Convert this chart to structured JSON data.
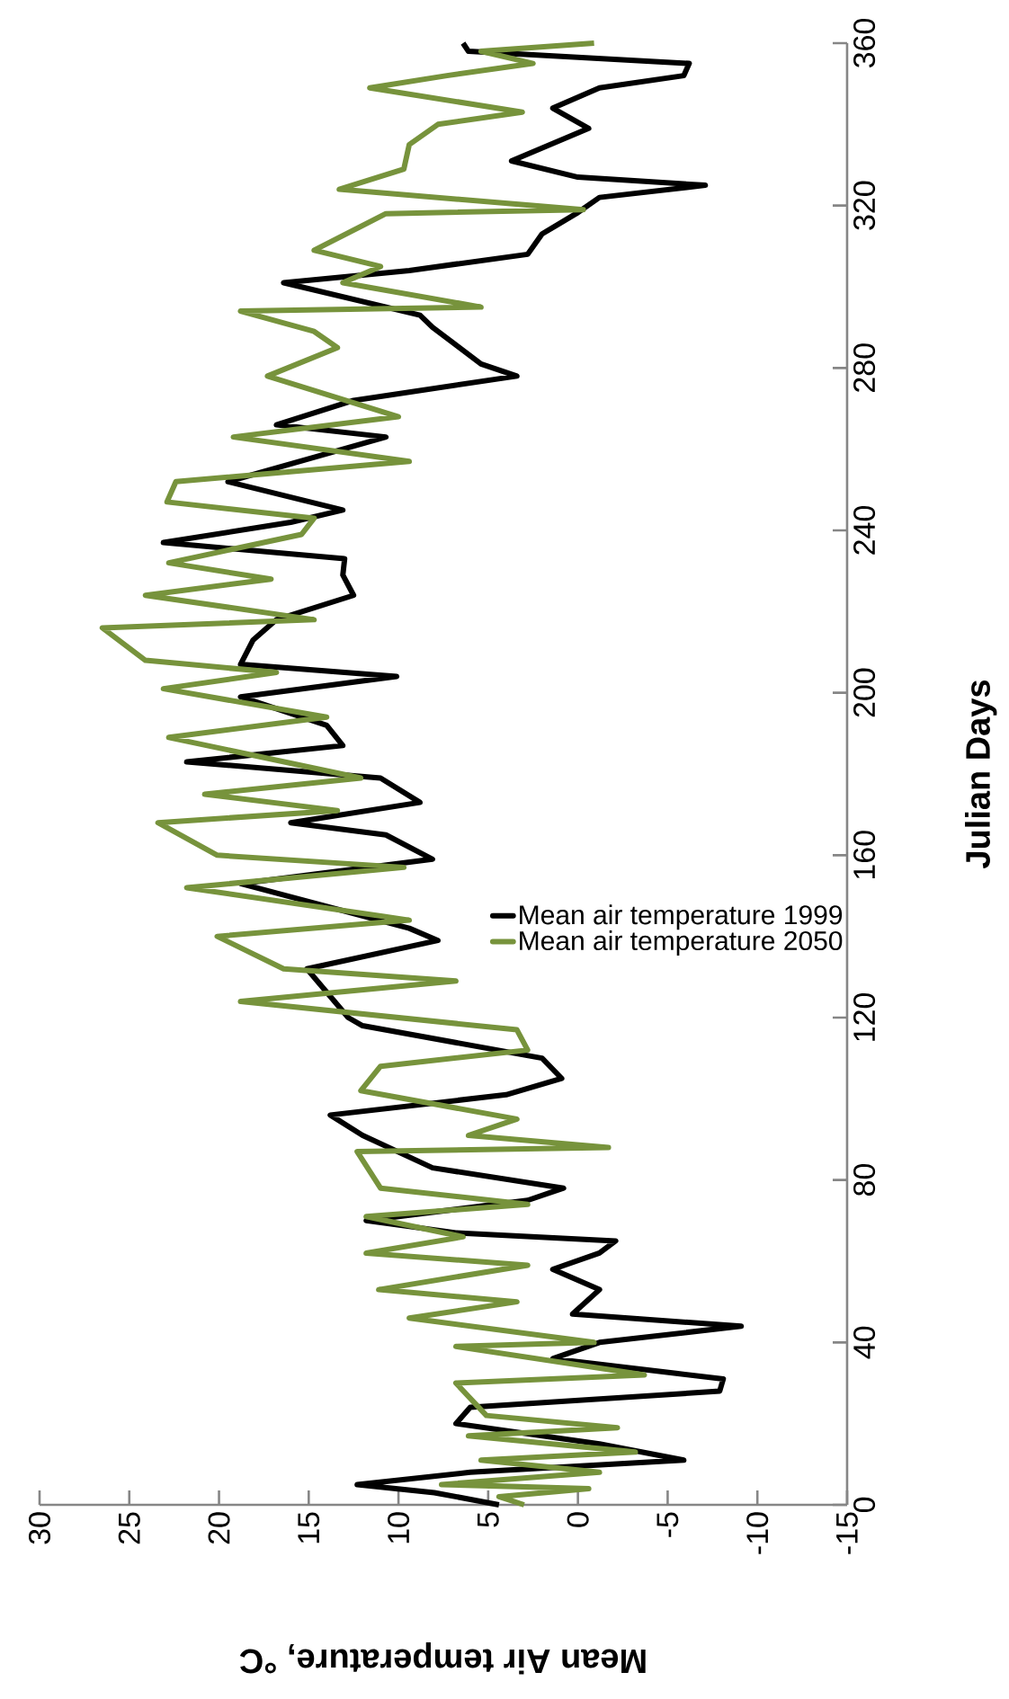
{
  "chart_data": {
    "type": "line",
    "xlabel": "Mean Air temperature, °C",
    "ylabel": "Julian Days",
    "xlim": [
      30,
      -15
    ],
    "ylim": [
      0,
      360
    ],
    "xticks": [
      30,
      25,
      20,
      15,
      10,
      5,
      0,
      -5,
      -10,
      -15
    ],
    "yticks": [
      0,
      40,
      80,
      120,
      160,
      200,
      240,
      280,
      320,
      360
    ],
    "legend": "right",
    "series": [
      {
        "name": "Mean air temperature 1999",
        "color": "#000000",
        "values": [
          0,
          3,
          5,
          8,
          11,
          15,
          20,
          24,
          28,
          31,
          36,
          40,
          44,
          47,
          53,
          58,
          62,
          65,
          67,
          70,
          75,
          78,
          83,
          91,
          96,
          101,
          105,
          110,
          118,
          120,
          132,
          139,
          142,
          153,
          159,
          165,
          168,
          173,
          179,
          183,
          187,
          192,
          199,
          204,
          207,
          213,
          218,
          224,
          229,
          233,
          237,
          242,
          245,
          252,
          263,
          266,
          272,
          278,
          281,
          290,
          293,
          301,
          304,
          308,
          313,
          318,
          322,
          325,
          327,
          331,
          339,
          344,
          349,
          352,
          355,
          358,
          360
        ],
        "x": [
          4.4,
          8,
          12.3,
          6,
          -5.9,
          -1.2,
          6.8,
          6,
          -7.9,
          -8.1,
          1.4,
          -1.2,
          -9.1,
          0.3,
          -1.2,
          1.4,
          -1.2,
          -2.1,
          6.8,
          11.8,
          2.8,
          0.8,
          8.1,
          12,
          13.8,
          4,
          0.9,
          2,
          12,
          12.8,
          15.1,
          7.8,
          9.4,
          18.8,
          8.1,
          10.7,
          16,
          8.8,
          11,
          21.8,
          13.1,
          14,
          18.8,
          10.1,
          18.8,
          18.1,
          16.8,
          12.5,
          13.1,
          13,
          23.1,
          16,
          13.1,
          19.5,
          10.7,
          16.8,
          12.5,
          3.4,
          5.4,
          8.1,
          8.8,
          16.4,
          9.4,
          2.8,
          2,
          0.1,
          -1.2,
          -7.1,
          0,
          3.7,
          -0.6,
          1.4,
          -1.2,
          -5.9,
          -6.2,
          6.1,
          6.4
        ]
      },
      {
        "name": "Mean air temperature 2050",
        "color": "#77933c",
        "values": [
          0,
          2,
          4,
          5,
          8,
          11,
          13,
          17,
          19,
          22,
          30,
          32,
          39,
          40,
          46,
          50,
          53,
          59,
          62,
          66,
          71,
          74,
          78,
          87,
          88,
          91,
          95,
          102,
          108,
          112,
          117,
          124,
          129,
          132,
          140,
          144,
          152,
          157,
          160,
          168,
          171,
          175,
          179,
          189,
          194,
          201,
          205,
          208,
          216,
          218,
          224,
          228,
          232,
          239,
          243,
          247,
          252,
          257,
          263,
          268,
          278,
          285,
          289,
          294,
          295,
          301,
          305,
          309,
          318,
          319,
          324,
          329,
          335,
          340,
          343,
          349,
          352,
          355,
          358,
          360
        ],
        "x": [
          3,
          4.4,
          -0.6,
          7.6,
          -1.2,
          5.4,
          -3.2,
          6.1,
          -2.2,
          5.1,
          6.8,
          -3.7,
          6.8,
          -0.9,
          9.4,
          3.4,
          11.1,
          2.8,
          11.8,
          6.4,
          11.8,
          2.8,
          11,
          12.3,
          -1.7,
          6.1,
          3.4,
          12.1,
          11,
          2.8,
          3.4,
          18.8,
          6.8,
          16.4,
          20.1,
          9.4,
          21.8,
          9.7,
          20.1,
          23.4,
          13.4,
          20.8,
          12.1,
          22.8,
          14,
          23.1,
          16.8,
          24.1,
          26.5,
          14.7,
          24.1,
          17.1,
          22.8,
          15.4,
          14.7,
          22.9,
          22.4,
          9.4,
          19.2,
          10,
          17.3,
          13.4,
          14.7,
          18.8,
          5.4,
          13.1,
          11,
          14.7,
          10.7,
          -0.3,
          13.3,
          9.7,
          9.4,
          7.8,
          3.1,
          11.6,
          7.3,
          2.5,
          5.4,
          -0.9
        ]
      }
    ]
  }
}
